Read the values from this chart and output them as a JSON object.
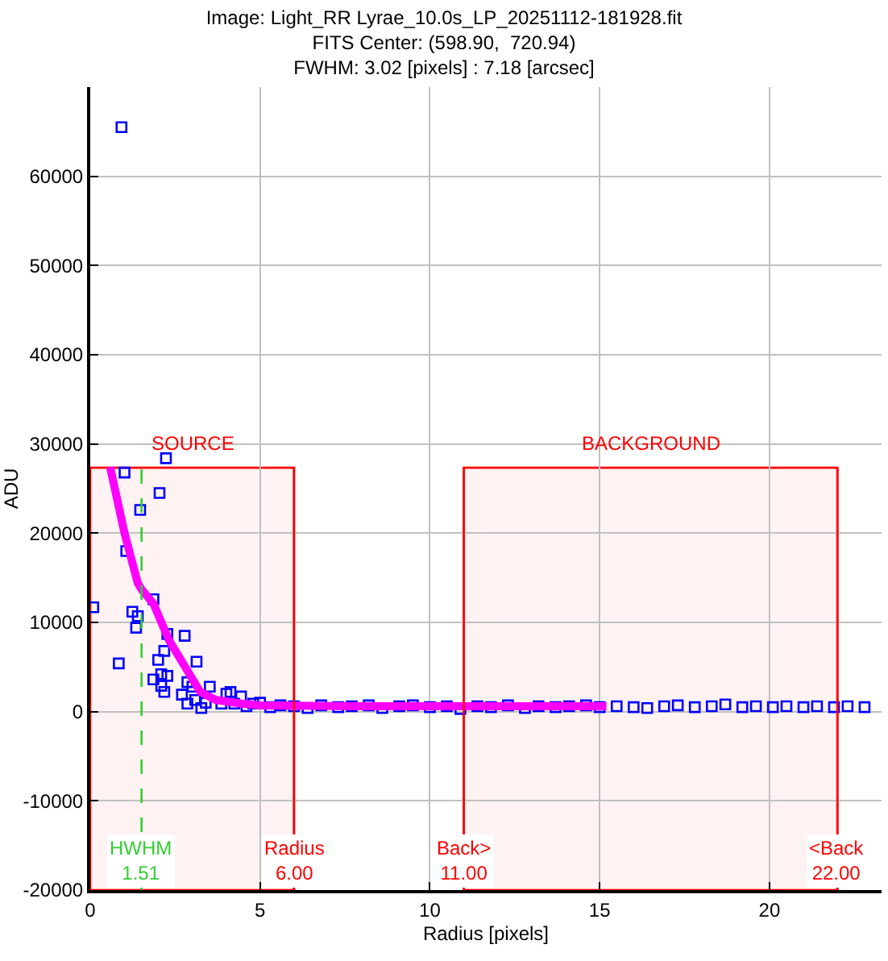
{
  "chart_data": {
    "type": "scatter",
    "title": "Image: Light_RR Lyrae_10.0s_LP_20251112-181928.fit",
    "subtitle": "FITS Center: (598.90,  720.94)\nFWHM: 3.02 [pixels] : 7.18 [arcsec]",
    "xlabel": "Radius [pixels]",
    "ylabel": "ADU",
    "xlim": [
      0,
      23.3
    ],
    "ylim": [
      -20000,
      70000
    ],
    "xticks": [
      0,
      5,
      10,
      15,
      20
    ],
    "yticks": [
      -20000,
      -10000,
      0,
      10000,
      20000,
      30000,
      40000,
      50000,
      60000
    ],
    "grid": true,
    "marker": "square",
    "series": [
      {
        "color": "#0000ff",
        "x": [
          0.09,
          0.84,
          0.92,
          1.01,
          1.06,
          1.24,
          1.35,
          1.4,
          1.47,
          1.86,
          1.86,
          2.0,
          2.04,
          2.09,
          2.09,
          2.18,
          2.18,
          2.23,
          2.27,
          2.27,
          2.7,
          2.78,
          2.86,
          2.86,
          3.01,
          3.09,
          3.13,
          3.27,
          3.4,
          3.52,
          3.86,
          4.01,
          4.13,
          4.24,
          4.44,
          4.6,
          4.8,
          5.0,
          5.3,
          5.6,
          6.0,
          6.4,
          6.8,
          7.3,
          7.7,
          8.2,
          8.6,
          9.1,
          9.5,
          10.0,
          10.5,
          10.9,
          11.4,
          11.8,
          12.3,
          12.8,
          13.2,
          13.7,
          14.1,
          14.6,
          15.0,
          15.5,
          16.0,
          16.4,
          16.9,
          17.3,
          17.8,
          18.3,
          18.7,
          19.2,
          19.6,
          20.1,
          20.5,
          21.0,
          21.4,
          21.9,
          22.3,
          22.8
        ],
        "values": [
          11700,
          5400,
          65500,
          26800,
          18000,
          11200,
          9400,
          10700,
          22600,
          12600,
          3600,
          5800,
          24500,
          4200,
          2900,
          6800,
          2200,
          28400,
          8700,
          4000,
          1900,
          8500,
          3300,
          900,
          2800,
          1300,
          5600,
          400,
          1000,
          2800,
          900,
          2000,
          2200,
          900,
          1700,
          600,
          900,
          1000,
          500,
          700,
          600,
          400,
          700,
          500,
          600,
          700,
          400,
          600,
          700,
          500,
          600,
          300,
          600,
          500,
          700,
          400,
          600,
          500,
          600,
          700,
          500,
          600,
          500,
          400,
          600,
          700,
          500,
          600,
          800,
          500,
          600,
          500,
          600,
          500,
          600,
          500,
          600,
          500
        ]
      },
      {
        "type": "line",
        "color": "#ff00ff",
        "marker": "none",
        "x": [
          0.585,
          1.01,
          1.4,
          1.51,
          1.86,
          2.32,
          2.78,
          3.24,
          3.7,
          4.47,
          5.0,
          8.0,
          12.0,
          15.2
        ],
        "values": [
          27400,
          20000,
          14400,
          13700,
          12100,
          8000,
          5100,
          2200,
          1300,
          900,
          700,
          600,
          600,
          600
        ]
      }
    ],
    "ref_lines": [
      {
        "axis": "x",
        "value": 1.51,
        "label": "HWHM 1.51",
        "color": "#33cc33",
        "line_style": "dashed"
      },
      {
        "axis": "x",
        "value": 6,
        "label": "Radius 6.00",
        "color": "#ff0000",
        "line_style": "solid"
      },
      {
        "axis": "x",
        "value": 11,
        "label": "Back> 11.00",
        "color": "#ff0000",
        "line_style": "solid"
      },
      {
        "axis": "x",
        "value": 22,
        "label": "<Back 22.00",
        "color": "#ff0000",
        "line_style": "solid"
      }
    ],
    "bands": [
      {
        "axis": "x",
        "from": 0,
        "to": 6,
        "label": "SOURCE",
        "color": "#ff0000"
      },
      {
        "axis": "x",
        "from": 11,
        "to": 22,
        "label": "BACKGROUND",
        "color": "#ff0000"
      }
    ]
  }
}
